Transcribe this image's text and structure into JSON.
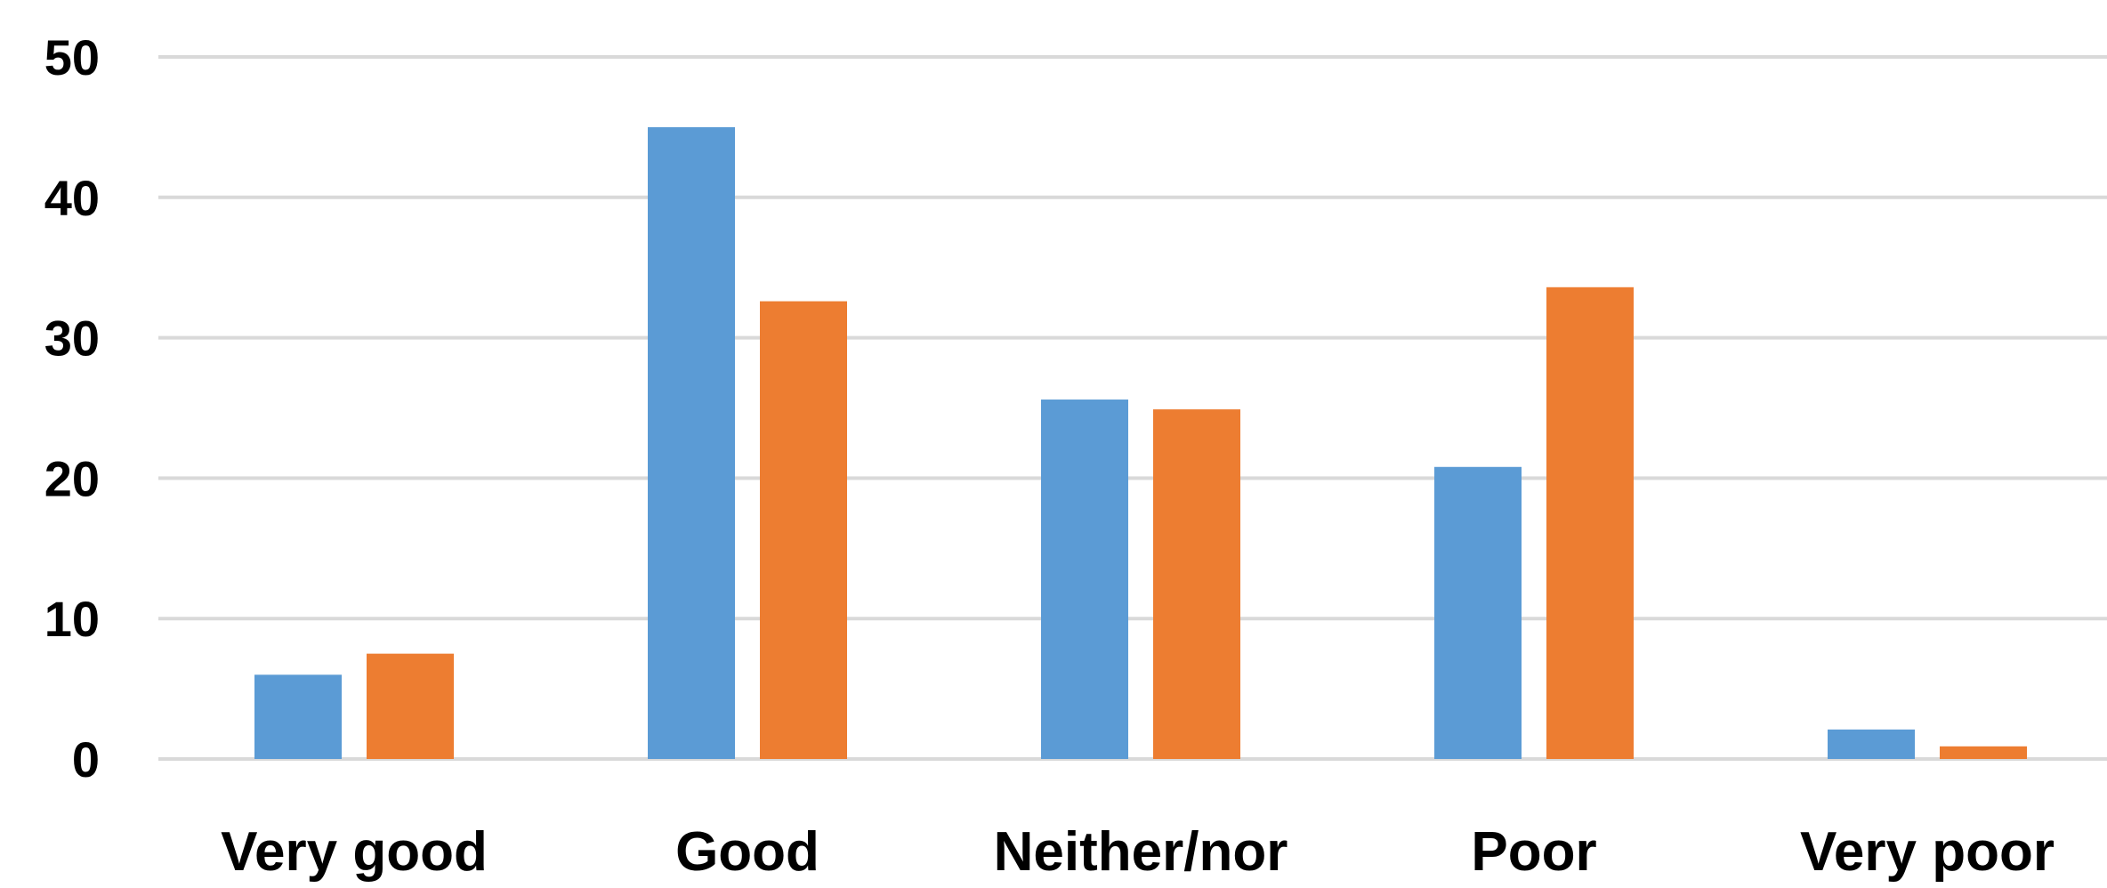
{
  "chart_data": {
    "type": "bar",
    "categories": [
      "Very good",
      "Good",
      "Neither/nor",
      "Poor",
      "Very poor"
    ],
    "series": [
      {
        "color": "#5B9BD5",
        "values": [
          6,
          45,
          25.6,
          20.8,
          2.1
        ]
      },
      {
        "color": "#ED7D31",
        "values": [
          7.5,
          32.6,
          24.9,
          33.6,
          0.9
        ]
      }
    ],
    "ylim": [
      0,
      50
    ],
    "yticks": [
      0,
      10,
      20,
      30,
      40,
      50
    ],
    "grid": true,
    "title": "",
    "xlabel": "",
    "ylabel": ""
  },
  "colors": {
    "gridline": "#D9D9D9",
    "text": "#000000"
  }
}
